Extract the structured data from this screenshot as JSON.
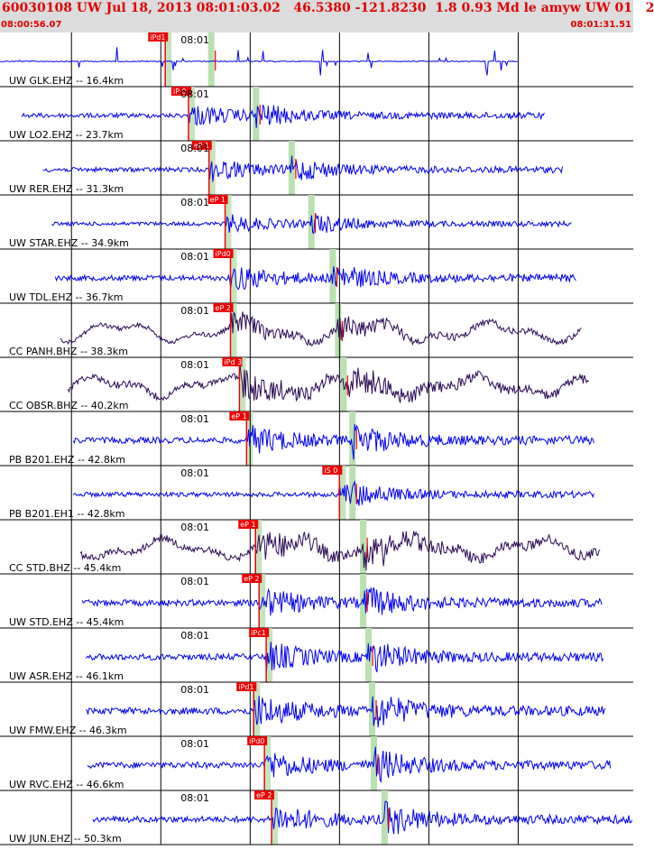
{
  "header": {
    "title": "60030108 UW Jul 18, 2013 08:01:03.02   46.5380 -121.8230  1.8 0.93 Md le amyw UW 01   2",
    "start_time": "08:00:56.07",
    "end_time": "08:01:31.51"
  },
  "colors": {
    "waveform_blue": "#0000ee",
    "waveform_purple": "#2a0a55",
    "pick_red": "#ee0000",
    "window_green": "#b8e0b0",
    "grid_black": "#000000"
  },
  "chart_data": {
    "type": "line",
    "x_range_seconds": [
      0,
      35.44
    ],
    "minute_label": "08:01",
    "stations": [
      {
        "label": "UW GLK.EHZ -- 16.4km",
        "pick": "iPd1",
        "pick_time": 9.25,
        "s_time": 11.8,
        "color": "blue",
        "amp": 0.35,
        "kind": "glitch",
        "sig_start": 0.0,
        "sig_end": 29.0
      },
      {
        "label": "UW LO2.EHZ -- 23.7km",
        "pick": "iP 0",
        "pick_time": 10.55,
        "s_time": 14.3,
        "color": "blue",
        "amp": 0.3,
        "kind": "event",
        "sig_start": 1.2,
        "sig_end": 30.5
      },
      {
        "label": "UW RER.EHZ -- 31.3km",
        "pick": "eP 1",
        "pick_time": 11.7,
        "s_time": 16.3,
        "color": "blue",
        "amp": 0.3,
        "kind": "event",
        "sig_start": 2.4,
        "sig_end": 31.5
      },
      {
        "label": "UW STAR.EHZ -- 34.9km",
        "pick": "eP 1",
        "pick_time": 12.6,
        "s_time": 17.4,
        "color": "blue",
        "amp": 0.25,
        "kind": "event",
        "sig_start": 2.9,
        "sig_end": 32.0
      },
      {
        "label": "UW TDL.EHZ -- 36.7km",
        "pick": "iPd0",
        "pick_time": 12.9,
        "s_time": 18.6,
        "color": "blue",
        "amp": 0.35,
        "kind": "event",
        "sig_start": 3.1,
        "sig_end": 32.3
      },
      {
        "label": "CC PANH.BHZ -- 38.3km",
        "pick": "eP 2",
        "pick_time": 12.9,
        "s_time": 18.9,
        "color": "purple",
        "amp": 0.3,
        "kind": "drift",
        "sig_start": 3.4,
        "sig_end": 32.6
      },
      {
        "label": "CC OBSR.BHZ -- 40.2km",
        "pick": "iPd 3",
        "pick_time": 13.4,
        "s_time": 19.2,
        "color": "purple",
        "amp": 0.45,
        "kind": "drift",
        "sig_start": 3.8,
        "sig_end": 33.0
      },
      {
        "label": "PB B201.EHZ -- 42.8km",
        "pick": "eP 1",
        "pick_time": 13.8,
        "s_time": 19.7,
        "color": "blue",
        "amp": 0.4,
        "kind": "event",
        "sig_start": 4.1,
        "sig_end": 33.3
      },
      {
        "label": "PB B201.EH1 -- 42.8km",
        "pick": "iS 0",
        "pick_time": 19.0,
        "s_time": 19.7,
        "color": "blue",
        "amp": 0.3,
        "kind": "event",
        "sig_start": 4.1,
        "sig_end": 33.3
      },
      {
        "label": "CC STD.BHZ -- 45.4km",
        "pick": "eP 1",
        "pick_time": 14.3,
        "s_time": 20.3,
        "color": "purple",
        "amp": 0.45,
        "kind": "drift",
        "sig_start": 4.5,
        "sig_end": 33.6
      },
      {
        "label": "UW STD.EHZ -- 45.4km",
        "pick": "eP 2",
        "pick_time": 14.5,
        "s_time": 20.3,
        "color": "blue",
        "amp": 0.4,
        "kind": "event",
        "sig_start": 4.6,
        "sig_end": 33.7
      },
      {
        "label": "UW ASR.EHZ -- 46.1km",
        "pick": "iPc1",
        "pick_time": 14.9,
        "s_time": 20.6,
        "color": "blue",
        "amp": 0.4,
        "kind": "event",
        "sig_start": 4.8,
        "sig_end": 33.8
      },
      {
        "label": "UW FMW.EHZ -- 46.3km",
        "pick": "iPd1",
        "pick_time": 14.2,
        "s_time": 20.8,
        "color": "blue",
        "amp": 0.45,
        "kind": "event",
        "sig_start": 4.8,
        "sig_end": 33.9
      },
      {
        "label": "UW RVC.EHZ -- 46.6km",
        "pick": "iPd0",
        "pick_time": 14.8,
        "s_time": 20.9,
        "color": "blue",
        "amp": 0.4,
        "kind": "event",
        "sig_start": 4.9,
        "sig_end": 34.2
      },
      {
        "label": "UW JUN.EHZ -- 50.3km",
        "pick": "eP 2",
        "pick_time": 15.2,
        "s_time": 21.5,
        "color": "blue",
        "amp": 0.4,
        "kind": "event",
        "sig_start": 5.2,
        "sig_end": 35.4
      }
    ]
  }
}
